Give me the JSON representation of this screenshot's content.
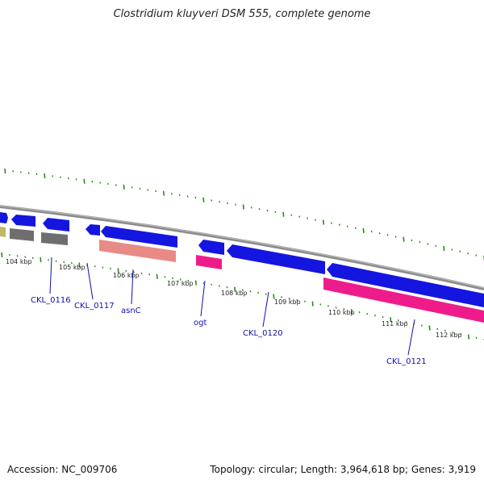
{
  "title": "Clostridium kluyveri DSM 555, complete genome",
  "accession": "Accession: NC_009706",
  "stats": "Topology: circular; Length: 3,964,618 bp; Genes: 3,919",
  "colors": {
    "backbone": "#8c8c8c",
    "cds": "#1515e0",
    "gene": "#7a7a7a",
    "rRNA_like": "#e88a85",
    "pink": "#ee1c8a",
    "olive": "#c2b667",
    "tick": "#2a8a1a",
    "label": "#1010b0"
  },
  "kbp_labels": [
    "104 kbp",
    "105 kbp",
    "106 kbp",
    "107 kbp",
    "108 kbp",
    "109 kbp",
    "110 kbp",
    "111 kbp",
    "112 kbp"
  ],
  "gene_labels": [
    "CKL_0116",
    "CKL_0117",
    "asnC",
    "ogt",
    "CKL_0120",
    "CKL_0121"
  ]
}
